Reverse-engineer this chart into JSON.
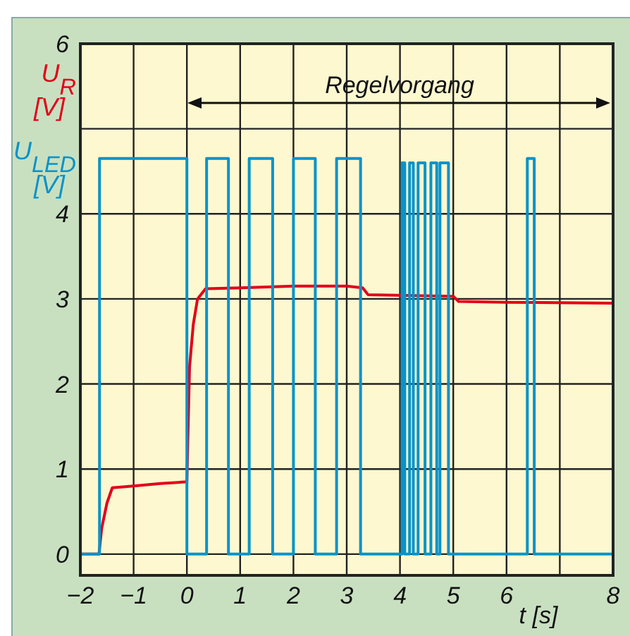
{
  "chart_data": {
    "type": "line",
    "xlabel": "t [s]",
    "annotations": [
      "Regelvorgang"
    ],
    "xlim": [
      -2,
      8
    ],
    "xticks": [
      -2,
      -1,
      0,
      1,
      2,
      3,
      4,
      5,
      6,
      {
        "value": 7,
        "label": null
      },
      8
    ],
    "ylim": [
      -0.25,
      6
    ],
    "yticks": [
      0,
      1,
      2,
      3,
      4,
      {
        "value": 5,
        "label": null
      },
      6
    ],
    "grid": true,
    "marker": "none",
    "line_style": "solid",
    "series": [
      {
        "name": "U$_{R}$ [V]",
        "color": "#e2001a",
        "x": [
          -2,
          -1.65,
          -1.6,
          -1.5,
          -1.4,
          -1,
          -0.5,
          0,
          0.02,
          0.05,
          0.12,
          0.2,
          0.35,
          1,
          2,
          3,
          3.3,
          3.4,
          5,
          5.1,
          6,
          8
        ],
        "values": [
          0,
          0,
          0.3,
          0.6,
          0.78,
          0.8,
          0.83,
          0.85,
          1.4,
          2.2,
          2.7,
          3.0,
          3.12,
          3.13,
          3.15,
          3.15,
          3.13,
          3.05,
          3.03,
          2.97,
          2.96,
          2.95
        ]
      },
      {
        "name": "U$_{LED}$ [V]",
        "color": "#0893c9",
        "x": [
          -2,
          -1.64,
          -1.64,
          0,
          0,
          0.37,
          0.37,
          0.78,
          0.78,
          1.17,
          1.17,
          1.61,
          1.61,
          2.0,
          2.0,
          2.41,
          2.41,
          2.81,
          2.81,
          3.26,
          3.26,
          4.04,
          4.04,
          4.09,
          4.09,
          4.18,
          4.18,
          4.25,
          4.25,
          4.34,
          4.34,
          4.47,
          4.47,
          4.58,
          4.58,
          4.69,
          4.69,
          4.75,
          4.75,
          4.91,
          4.91,
          6.39,
          6.39,
          6.52,
          6.52,
          8
        ],
        "values": [
          0,
          0,
          4.65,
          4.65,
          0,
          0,
          4.65,
          4.65,
          0,
          0,
          4.65,
          4.65,
          0,
          0,
          4.65,
          4.65,
          0,
          0,
          4.65,
          4.65,
          0,
          0,
          4.6,
          4.6,
          0,
          0,
          4.6,
          4.6,
          0,
          0,
          4.6,
          4.6,
          0,
          0,
          4.6,
          4.6,
          0,
          0,
          4.6,
          4.6,
          0,
          0,
          4.65,
          4.65,
          0,
          0
        ]
      }
    ]
  }
}
